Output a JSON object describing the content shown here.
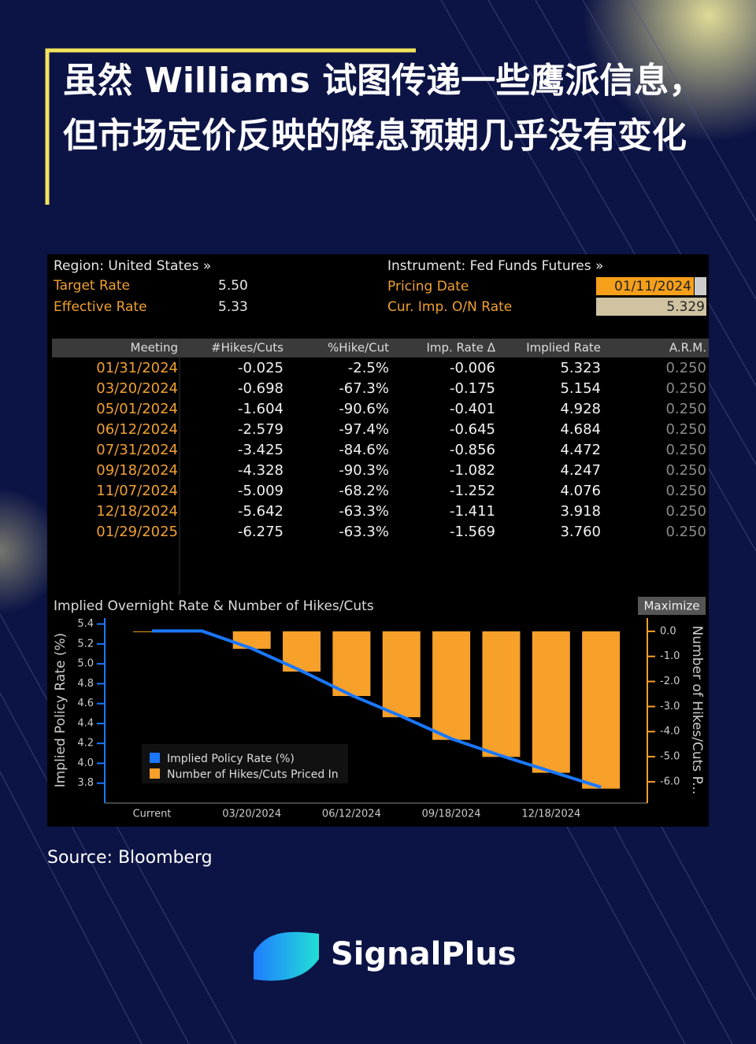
{
  "header": {
    "title": "虽然 Williams 试图传递一些鹰派信息，但市场定价反映的降息预期几乎没有变化"
  },
  "panel": {
    "region": "Region: United States »",
    "instrument": "Instrument: Fed Funds Futures »",
    "fields": [
      {
        "label": "Target Rate",
        "value": "5.50"
      },
      {
        "label": "Effective Rate",
        "value": "5.33"
      },
      {
        "label": "Pricing Date",
        "value": "01/11/2024"
      },
      {
        "label": "Cur. Imp. O/N Rate",
        "value": "5.329"
      }
    ],
    "maximize": "Maximize"
  },
  "table": {
    "columns": [
      "Meeting",
      "#Hikes/Cuts",
      "%Hike/Cut",
      "Imp. Rate Δ",
      "Implied Rate",
      "A.R.M."
    ],
    "rows": [
      [
        "01/31/2024",
        "-0.025",
        "-2.5%",
        "-0.006",
        "5.323",
        "0.250"
      ],
      [
        "03/20/2024",
        "-0.698",
        "-67.3%",
        "-0.175",
        "5.154",
        "0.250"
      ],
      [
        "05/01/2024",
        "-1.604",
        "-90.6%",
        "-0.401",
        "4.928",
        "0.250"
      ],
      [
        "06/12/2024",
        "-2.579",
        "-97.4%",
        "-0.645",
        "4.684",
        "0.250"
      ],
      [
        "07/31/2024",
        "-3.425",
        "-84.6%",
        "-0.856",
        "4.472",
        "0.250"
      ],
      [
        "09/18/2024",
        "-4.328",
        "-90.3%",
        "-1.082",
        "4.247",
        "0.250"
      ],
      [
        "11/07/2024",
        "-5.009",
        "-68.2%",
        "-1.252",
        "4.076",
        "0.250"
      ],
      [
        "12/18/2024",
        "-5.642",
        "-63.3%",
        "-1.411",
        "3.918",
        "0.250"
      ],
      [
        "01/29/2025",
        "-6.275",
        "-63.3%",
        "-1.569",
        "3.760",
        "0.250"
      ]
    ]
  },
  "chart_data": {
    "type": "bar-line",
    "title": "Implied Overnight Rate & Number of Hikes/Cuts",
    "y_label": "Implied Policy Rate (%)",
    "y2_label": "Number of Hikes/Cuts P...",
    "categories": [
      "Current",
      null,
      "03/20/2024",
      null,
      "06/12/2024",
      null,
      "09/18/2024",
      null,
      "12/18/2024",
      null
    ],
    "series": [
      {
        "name": "Implied Policy Rate (%)",
        "type": "line",
        "color": "#1a78ff",
        "values": [
          5.33,
          5.33,
          5.154,
          4.928,
          4.684,
          4.472,
          4.247,
          4.076,
          3.918,
          3.76
        ]
      },
      {
        "name": "Number of Hikes/Cuts Priced In",
        "type": "bar",
        "axis": "y2",
        "color": "#f7a02a",
        "values": [
          -0.025,
          null,
          -0.698,
          -1.604,
          -2.579,
          -3.425,
          -4.328,
          -5.009,
          -5.642,
          -6.275
        ]
      }
    ],
    "ylim": [
      3.6,
      5.46
    ],
    "yticks": [
      3.8,
      {
        "value": 4,
        "label": "4.0"
      },
      4.2,
      4.4,
      4.6,
      4.8,
      {
        "value": 5,
        "label": "5.0"
      },
      5.2,
      5.4
    ],
    "y2lim": [
      -6.85,
      0.53
    ],
    "y2ticks": [
      {
        "value": 0,
        "label": "0.0"
      },
      {
        "value": -1,
        "label": "-1.0"
      },
      {
        "value": -2,
        "label": "-2.0"
      },
      {
        "value": -3,
        "label": "-3.0"
      },
      {
        "value": -4,
        "label": "-4.0"
      },
      {
        "value": -5,
        "label": "-5.0"
      },
      {
        "value": -6,
        "label": "-6.0"
      }
    ]
  },
  "source": "Source: Bloomberg",
  "brand": "SignalPlus"
}
